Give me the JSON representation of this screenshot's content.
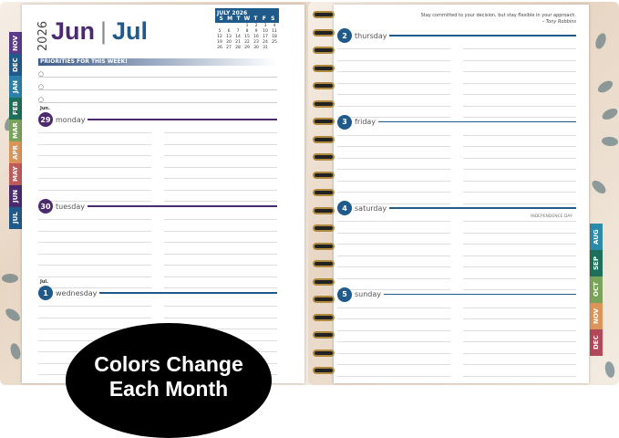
{
  "left_page": {
    "year": "2026",
    "month_primary": "Jun",
    "month_secondary": "Jul",
    "month_tabs": [
      {
        "label": "NOV",
        "color": "#5b3a8c"
      },
      {
        "label": "DEC",
        "color": "#1f5a8a"
      },
      {
        "label": "JAN",
        "color": "#2b7fa8"
      },
      {
        "label": "FEB",
        "color": "#1d6f5a"
      },
      {
        "label": "MAR",
        "color": "#7aa35c"
      },
      {
        "label": "APR",
        "color": "#d9955a"
      },
      {
        "label": "MAY",
        "color": "#c05a5a"
      },
      {
        "label": "JUN",
        "color": "#4b2a70"
      },
      {
        "label": "JUL",
        "color": "#1f5a8a"
      }
    ],
    "mini_calendar": {
      "title": "JULY 2026",
      "weekdays": [
        "S",
        "M",
        "T",
        "W",
        "T",
        "F",
        "S"
      ],
      "cells": [
        "",
        "",
        "",
        "1",
        "2",
        "3",
        "4",
        "5",
        "6",
        "7",
        "8",
        "9",
        "10",
        "11",
        "12",
        "13",
        "14",
        "15",
        "16",
        "17",
        "18",
        "19",
        "20",
        "21",
        "22",
        "23",
        "24",
        "25",
        "26",
        "27",
        "28",
        "29",
        "30",
        "31",
        ""
      ]
    },
    "priorities_title": "PRIORITIES FOR THIS WEEK!",
    "priority_bullets": [
      "○",
      "○",
      "○"
    ],
    "days": [
      {
        "month": "Jun.",
        "num": "29",
        "name": "monday",
        "color": "#4b2a70"
      },
      {
        "month": "",
        "num": "30",
        "name": "tuesday",
        "color": "#4b2a70"
      },
      {
        "month": "Jul.",
        "num": "1",
        "name": "wednesday",
        "color": "#1f5a8a"
      }
    ]
  },
  "right_page": {
    "quote": "Stay committed to your decision, but stay flexible in your approach.",
    "quote_author": "– Tony Robbins",
    "days": [
      {
        "num": "2",
        "name": "thursday"
      },
      {
        "num": "3",
        "name": "friday"
      },
      {
        "num": "4",
        "name": "saturday"
      },
      {
        "num": "5",
        "name": "sunday"
      }
    ],
    "holiday": "INDEPENDENCE DAY",
    "day_color": "#1f5a8a",
    "month_tabs": [
      {
        "label": "AUG",
        "color": "#2b8aa8"
      },
      {
        "label": "SEP",
        "color": "#1d6f5a"
      },
      {
        "label": "OCT",
        "color": "#7aa35c"
      },
      {
        "label": "NOV",
        "color": "#d9955a"
      },
      {
        "label": "DEC",
        "color": "#b0485a"
      }
    ]
  },
  "badge": {
    "line1": "Colors Change",
    "line2": "Each Month"
  }
}
